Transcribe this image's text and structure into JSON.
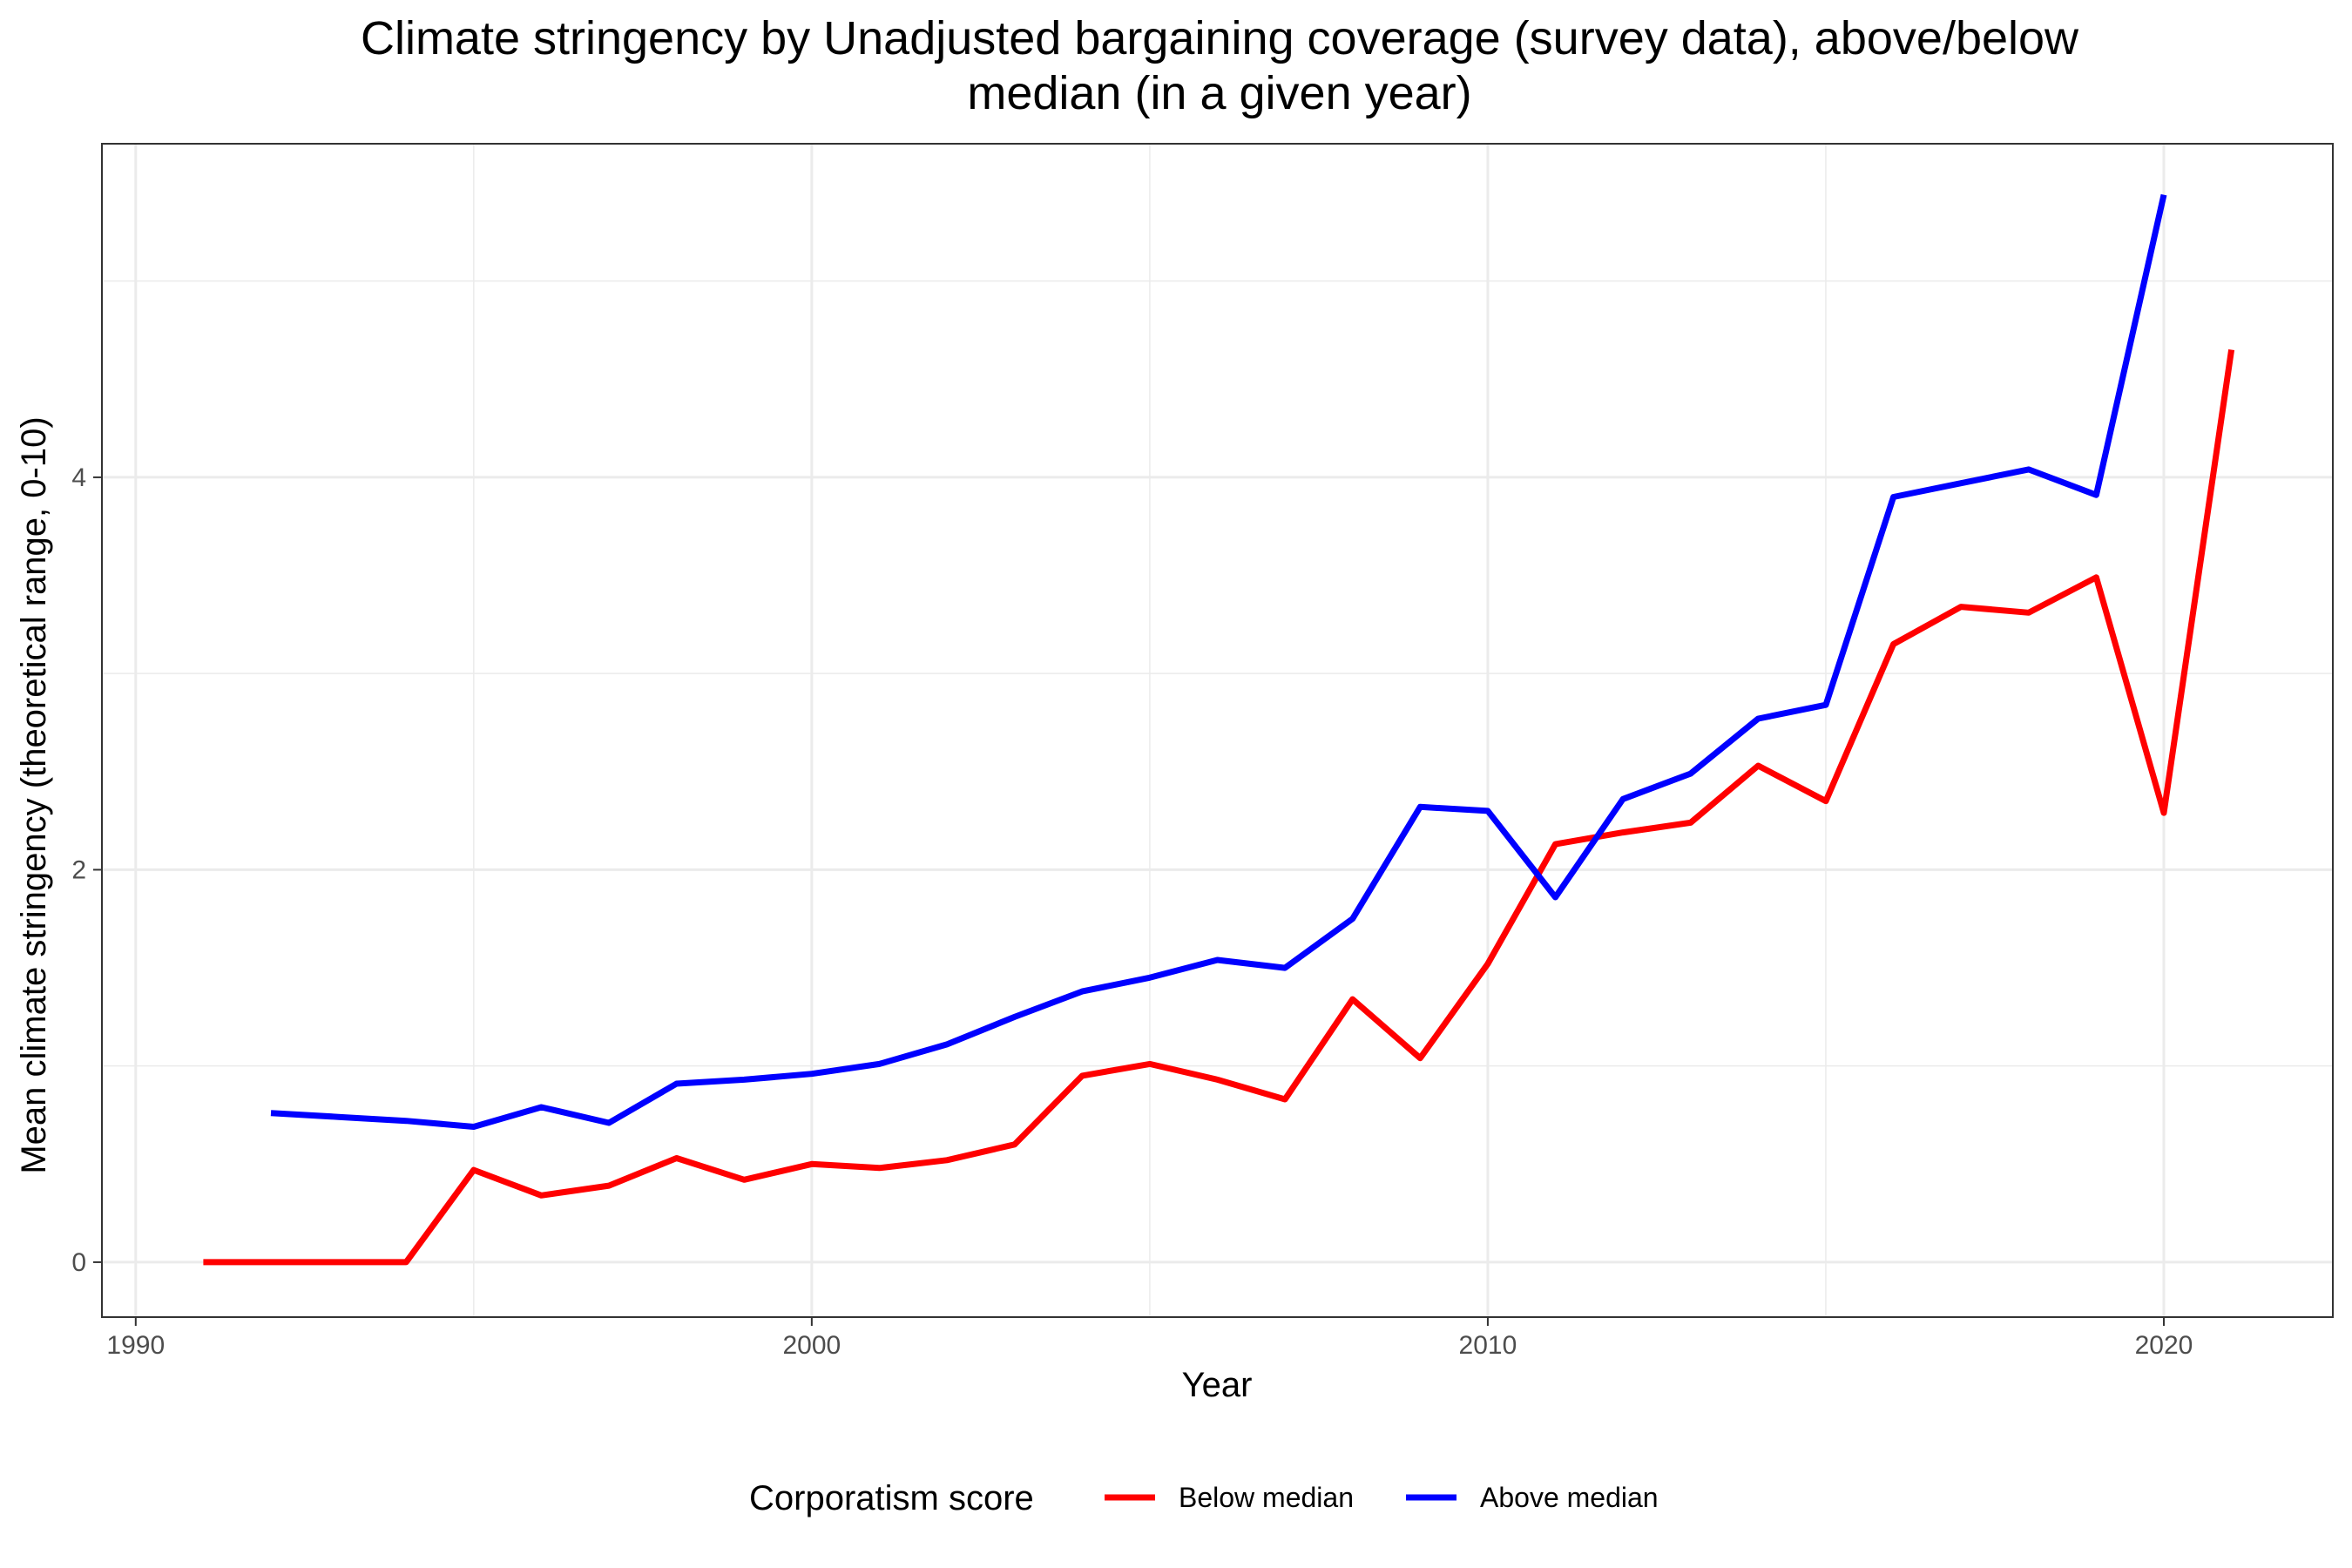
{
  "chart_data": {
    "type": "line",
    "title_line1": "Climate stringency by Unadjusted bargaining coverage (survey data), above/below",
    "title_line2": "median (in a given year)",
    "xlabel": "Year",
    "ylabel": "Mean climate stringency (theoretical range, 0-10)",
    "xlim": [
      1989.5,
      2022.5
    ],
    "ylim": [
      -0.28,
      5.7
    ],
    "x_ticks": [
      1990,
      2000,
      2010,
      2020
    ],
    "y_ticks": [
      0,
      2,
      4
    ],
    "x_minor": [
      1995,
      2005,
      2015
    ],
    "y_minor": [
      1,
      3,
      5
    ],
    "grid": true,
    "legend": {
      "title": "Corporatism score",
      "position": "bottom"
    },
    "series": [
      {
        "name": "Below median",
        "color": "#ff0000",
        "x": [
          1991,
          1992,
          1993,
          1994,
          1995,
          1996,
          1997,
          1998,
          1999,
          2000,
          2001,
          2002,
          2003,
          2004,
          2005,
          2006,
          2007,
          2008,
          2009,
          2010,
          2011,
          2012,
          2013,
          2014,
          2015,
          2016,
          2017,
          2018,
          2019,
          2020,
          2021
        ],
        "y": [
          0.0,
          0.0,
          0.0,
          0.0,
          0.47,
          0.34,
          0.39,
          0.53,
          0.42,
          0.5,
          0.48,
          0.52,
          0.6,
          0.95,
          1.01,
          0.93,
          0.83,
          1.34,
          1.04,
          1.52,
          2.13,
          2.19,
          2.24,
          2.53,
          2.35,
          3.15,
          3.34,
          3.31,
          3.49,
          2.29,
          4.65
        ]
      },
      {
        "name": "Above median",
        "color": "#0000ff",
        "x": [
          1992,
          1993,
          1994,
          1995,
          1996,
          1997,
          1998,
          1999,
          2000,
          2001,
          2002,
          2003,
          2004,
          2005,
          2006,
          2007,
          2008,
          2009,
          2010,
          2011,
          2012,
          2013,
          2014,
          2015,
          2016,
          2017,
          2018,
          2019,
          2020
        ],
        "y": [
          0.76,
          0.74,
          0.72,
          0.69,
          0.79,
          0.71,
          0.91,
          0.93,
          0.96,
          1.01,
          1.11,
          1.25,
          1.38,
          1.45,
          1.54,
          1.5,
          1.75,
          2.32,
          2.3,
          1.86,
          2.36,
          2.49,
          2.77,
          2.84,
          3.9,
          3.97,
          4.04,
          3.91,
          5.44
        ]
      }
    ]
  }
}
